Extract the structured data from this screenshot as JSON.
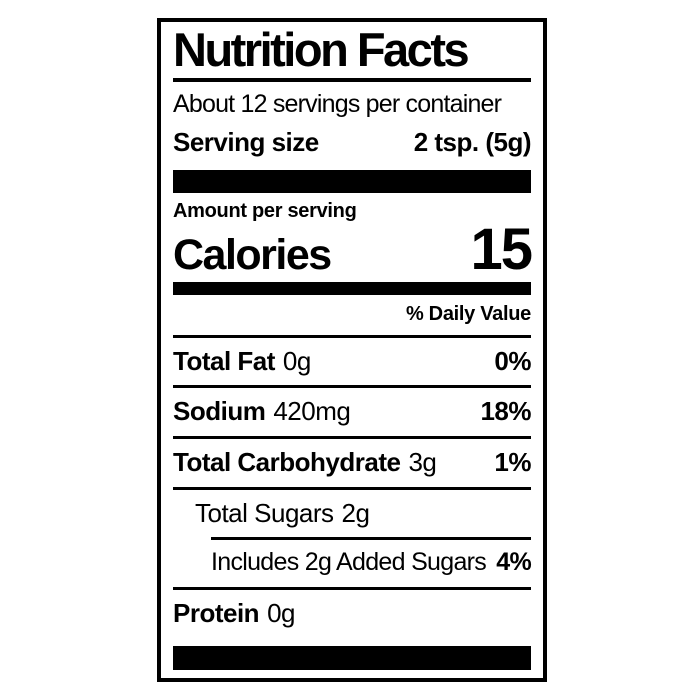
{
  "colors": {
    "text": "#000000",
    "background": "#ffffff"
  },
  "label": {
    "title": "Nutrition Facts",
    "servings_per_container": "About 12 servings per container",
    "serving_size_label": "Serving size",
    "serving_size_value": "2 tsp. (5g)",
    "amount_per_serving": "Amount per serving",
    "calories_label": "Calories",
    "calories_value": "15",
    "daily_value_header": "% Daily Value",
    "rows": [
      {
        "name": "Total Fat",
        "amount": "0g",
        "daily_value": "0%"
      },
      {
        "name": "Sodium",
        "amount": "420mg",
        "daily_value": "18%"
      },
      {
        "name": "Total Carbohydrate",
        "amount": "3g",
        "daily_value": "1%"
      },
      {
        "name": "Total Sugars",
        "amount": "2g",
        "daily_value": ""
      },
      {
        "name": "Includes 2g Added Sugars",
        "amount": "",
        "daily_value": "4%"
      },
      {
        "name": "Protein",
        "amount": "0g",
        "daily_value": ""
      }
    ]
  }
}
